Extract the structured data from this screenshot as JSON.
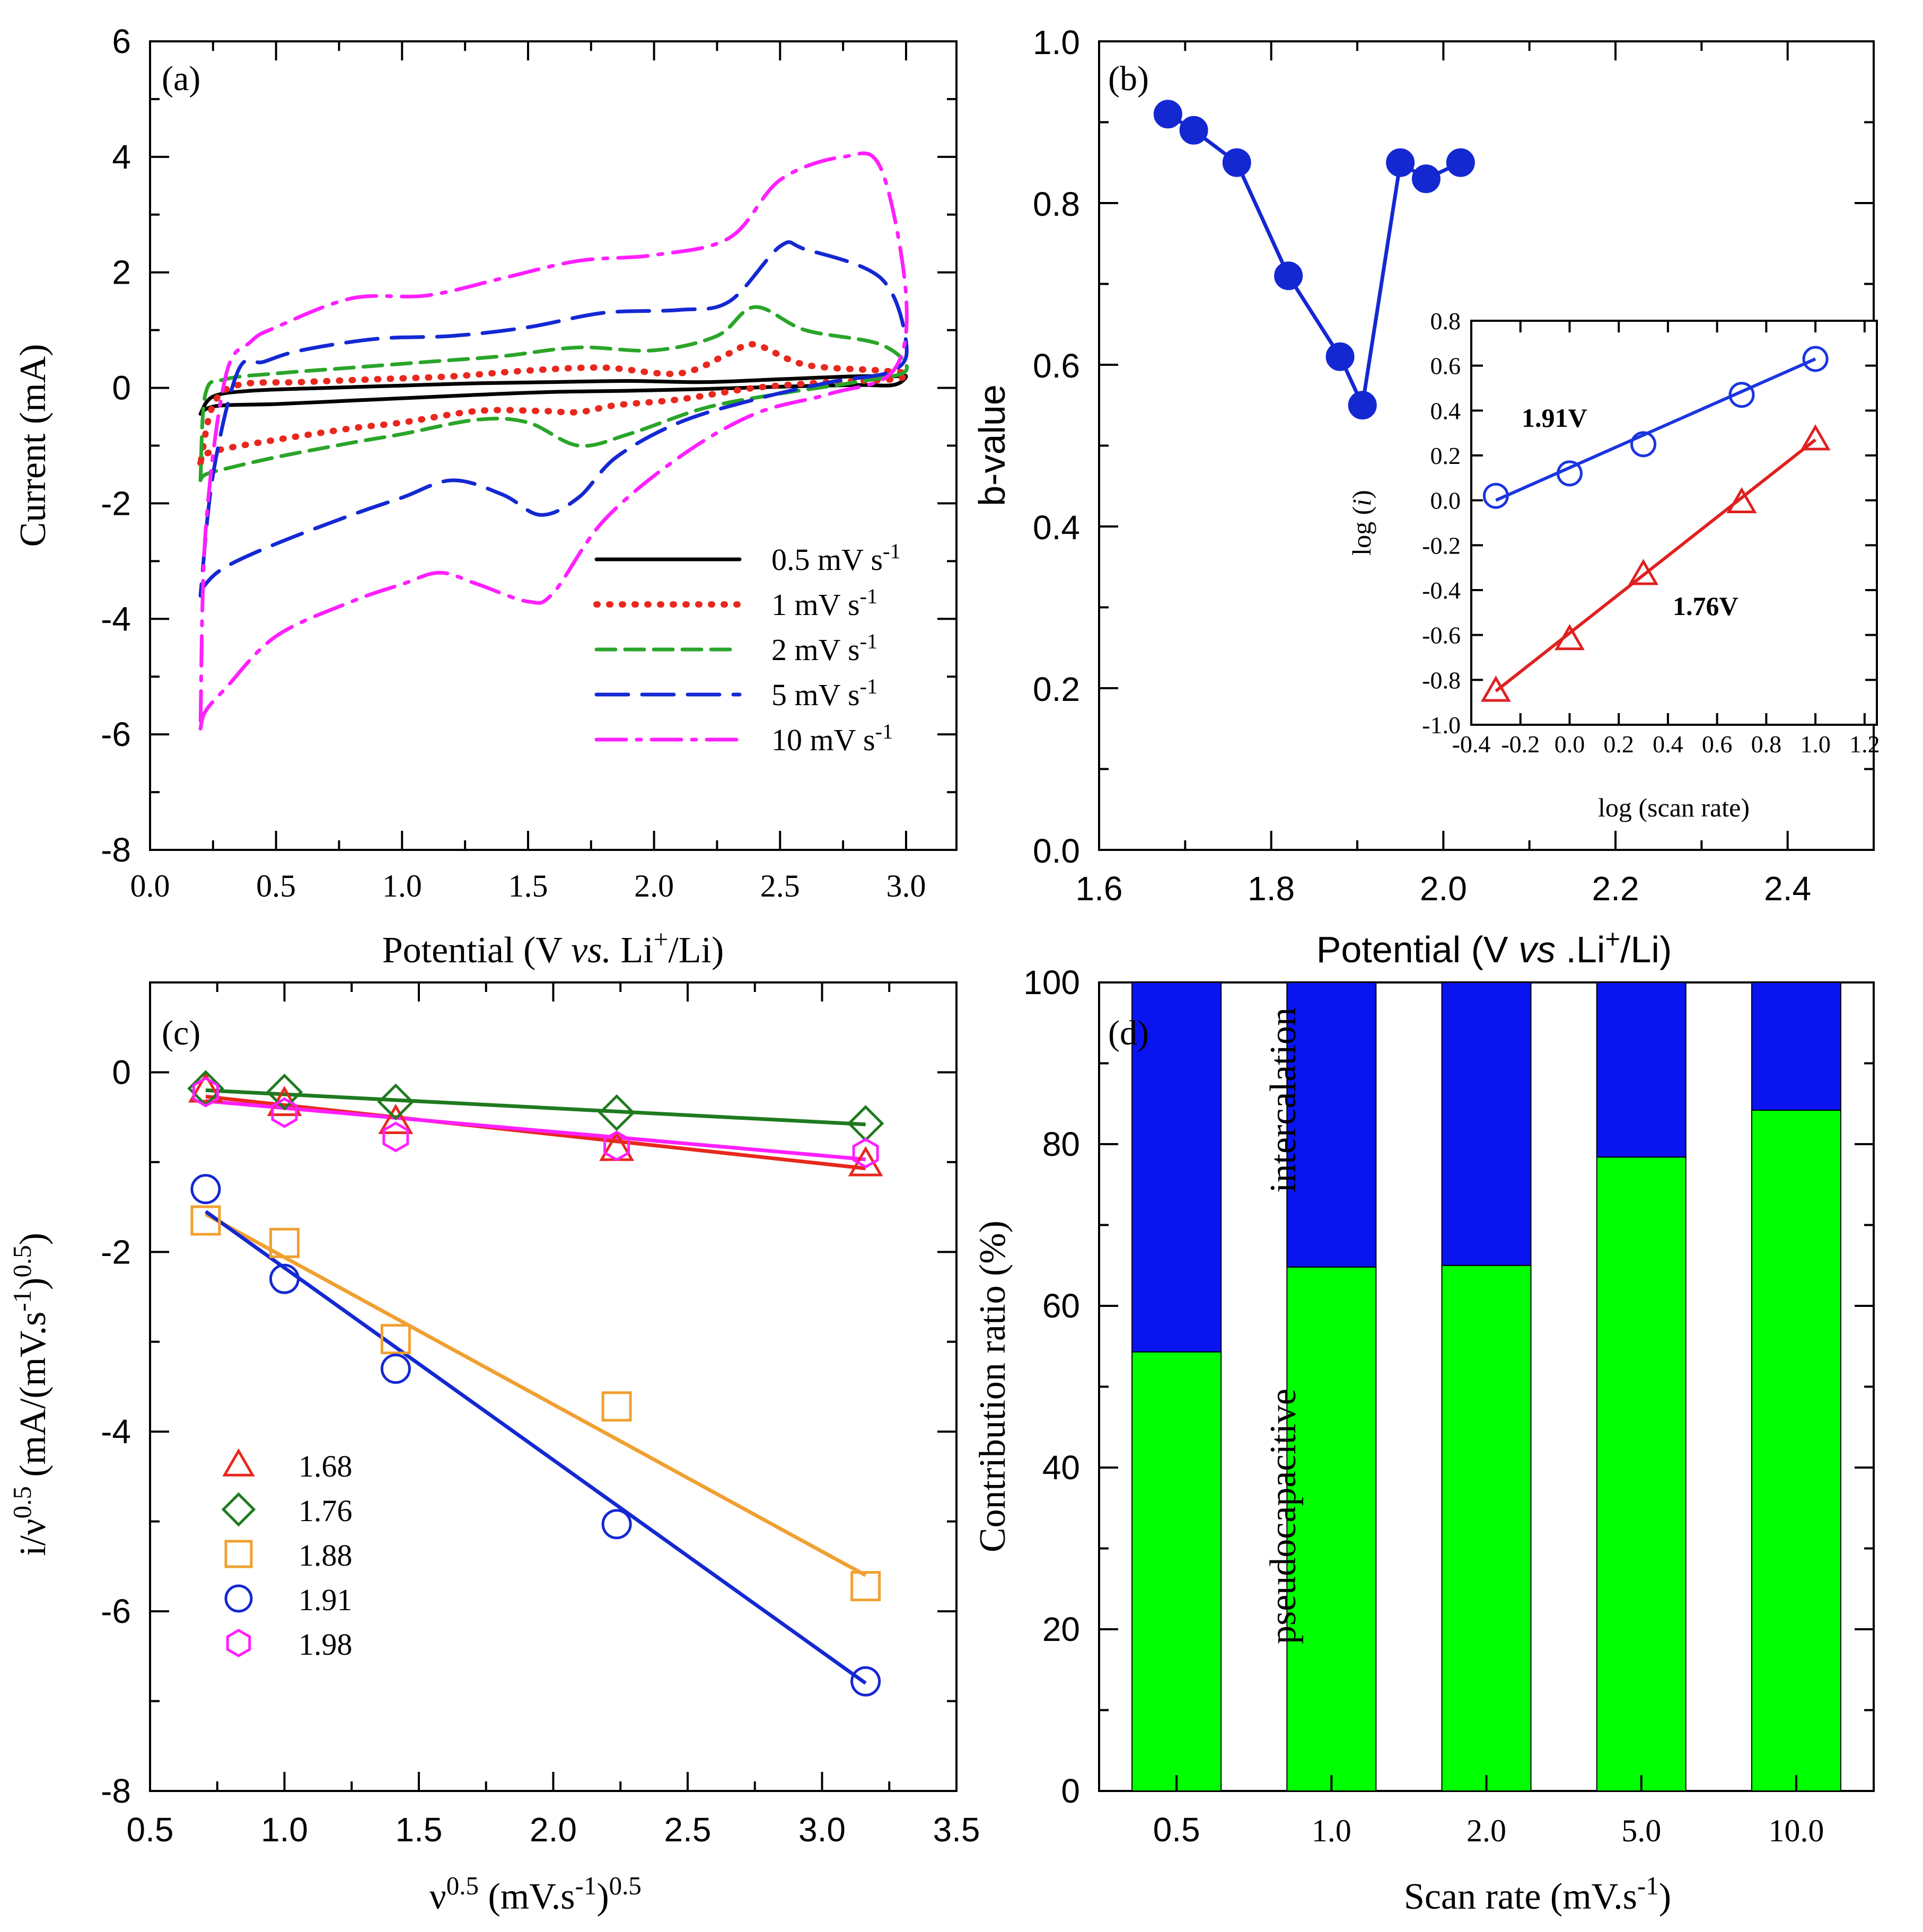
{
  "colors": {
    "black": "#000000",
    "red": "#e8281e",
    "green": "#2aa52a",
    "green_dark": "#1f7a1f",
    "blue": "#1428d2",
    "magenta": "#ff1fff",
    "orange": "#f0a030",
    "pseudo_bar": "#00ff00",
    "intercal_bar": "#0a14f0",
    "inset_blue": "#1a35e0",
    "inset_red": "#e02020"
  },
  "chart_data": [
    {
      "id": "a",
      "type": "line",
      "panel_label": "(a)",
      "xlabel": "Potential (V vs. Li+/Li)",
      "xlabel_parts": [
        "Potential (V ",
        "vs.",
        " Li",
        "+",
        "/Li)"
      ],
      "ylabel": "Current (mA)",
      "xlim": [
        0.0,
        3.2
      ],
      "ylim": [
        -8,
        6
      ],
      "xticks": [
        0.0,
        0.5,
        1.0,
        1.5,
        2.0,
        2.5,
        3.0
      ],
      "xtick_labels": [
        "0.0",
        "0.5",
        "1.0",
        "1.5",
        "2.0",
        "2.5",
        "3.0"
      ],
      "yticks": [
        -8,
        -6,
        -4,
        -2,
        0,
        2,
        4,
        6
      ],
      "ytick_labels": [
        "-8",
        "-6",
        "-4",
        "-2",
        "0",
        "2",
        "4",
        "6"
      ],
      "legend_position": "bottom-right",
      "series": [
        {
          "name": "0.5 mV s-1",
          "label_main": "0.5 mV s",
          "label_sup": "-1",
          "color": "black",
          "dash": "solid",
          "x": [
            0.2,
            0.23,
            0.3,
            0.5,
            0.8,
            1.0,
            1.3,
            1.6,
            1.9,
            2.2,
            2.5,
            2.8,
            2.95,
            3.0,
            2.95,
            2.8,
            2.5,
            2.2,
            1.9,
            1.6,
            1.3,
            1.0,
            0.7,
            0.4,
            0.25,
            0.2
          ],
          "y": [
            -0.45,
            -0.35,
            -0.3,
            -0.28,
            -0.22,
            -0.18,
            -0.12,
            -0.07,
            -0.05,
            -0.02,
            0.02,
            0.05,
            0.05,
            0.2,
            0.2,
            0.2,
            0.15,
            0.1,
            0.12,
            0.1,
            0.08,
            0.04,
            0.0,
            -0.05,
            -0.15,
            -0.45
          ]
        },
        {
          "name": "1 mV s-1",
          "label_main": "1 mV s",
          "label_sup": "-1",
          "color": "red",
          "dash": "dot",
          "x": [
            0.2,
            0.22,
            0.3,
            0.5,
            0.8,
            1.0,
            1.3,
            1.55,
            1.7,
            1.85,
            2.1,
            2.4,
            2.7,
            2.95,
            3.0,
            2.9,
            2.6,
            2.4,
            2.3,
            2.1,
            1.8,
            1.5,
            1.2,
            0.9,
            0.6,
            0.35,
            0.25,
            0.2
          ],
          "y": [
            -1.3,
            -1.15,
            -1.05,
            -0.9,
            -0.7,
            -0.6,
            -0.4,
            -0.4,
            -0.42,
            -0.3,
            -0.2,
            0.0,
            0.1,
            0.15,
            0.25,
            0.3,
            0.4,
            0.75,
            0.6,
            0.25,
            0.35,
            0.3,
            0.2,
            0.15,
            0.1,
            0.05,
            -0.3,
            -1.3
          ]
        },
        {
          "name": "2 mV s-1",
          "label_main": "2 mV s",
          "label_sup": "-1",
          "color": "green",
          "dash": "dash",
          "x": [
            0.2,
            0.22,
            0.3,
            0.5,
            0.8,
            1.0,
            1.3,
            1.5,
            1.7,
            1.9,
            2.2,
            2.5,
            2.8,
            3.0,
            2.9,
            2.6,
            2.4,
            2.25,
            2.0,
            1.7,
            1.4,
            1.1,
            0.8,
            0.5,
            0.3,
            0.22,
            0.2
          ],
          "y": [
            -1.6,
            -1.5,
            -1.4,
            -1.2,
            -0.95,
            -0.8,
            -0.55,
            -0.6,
            -1.0,
            -0.8,
            -0.35,
            -0.1,
            0.1,
            0.3,
            0.75,
            1.0,
            1.4,
            0.9,
            0.65,
            0.7,
            0.55,
            0.45,
            0.35,
            0.25,
            0.15,
            -0.1,
            -1.6
          ]
        },
        {
          "name": "5 mV s-1",
          "label_main": "5 mV s",
          "label_sup": "-1",
          "color": "blue",
          "dash": "longdash",
          "x": [
            0.2,
            0.22,
            0.3,
            0.5,
            0.8,
            1.0,
            1.2,
            1.4,
            1.55,
            1.7,
            1.85,
            2.1,
            2.4,
            2.7,
            2.95,
            3.0,
            2.9,
            2.6,
            2.5,
            2.3,
            2.1,
            1.8,
            1.5,
            1.2,
            0.9,
            0.6,
            0.45,
            0.35,
            0.25,
            0.2
          ],
          "y": [
            -3.6,
            -3.4,
            -3.1,
            -2.7,
            -2.2,
            -1.9,
            -1.6,
            -1.85,
            -2.2,
            -1.9,
            -1.2,
            -0.6,
            -0.2,
            0.1,
            0.3,
            0.8,
            1.9,
            2.4,
            2.45,
            1.5,
            1.35,
            1.3,
            1.05,
            0.9,
            0.85,
            0.65,
            0.45,
            0.3,
            -1.5,
            -3.6
          ]
        },
        {
          "name": "10 mV s-1",
          "label_main": "10 mV s",
          "label_sup": "-1",
          "color": "magenta",
          "dash": "dashdot",
          "x": [
            0.2,
            0.22,
            0.3,
            0.5,
            0.8,
            1.0,
            1.15,
            1.3,
            1.5,
            1.6,
            1.8,
            2.1,
            2.4,
            2.7,
            2.95,
            3.0,
            2.9,
            2.75,
            2.5,
            2.3,
            2.0,
            1.7,
            1.4,
            1.1,
            0.8,
            0.5,
            0.4,
            0.3,
            0.22,
            0.2
          ],
          "y": [
            -5.9,
            -5.6,
            -5.2,
            -4.3,
            -3.7,
            -3.4,
            -3.2,
            -3.4,
            -3.7,
            -3.55,
            -2.3,
            -1.2,
            -0.45,
            -0.1,
            0.3,
            1.6,
            3.8,
            4.0,
            3.6,
            2.6,
            2.3,
            2.2,
            1.9,
            1.6,
            1.55,
            1.05,
            0.8,
            0.2,
            -2.5,
            -5.9
          ]
        }
      ]
    },
    {
      "id": "b",
      "type": "line",
      "panel_label": "(b)",
      "xlabel": "Potential (V vs .Li+/Li)",
      "xlabel_parts": [
        "Potential (V ",
        "vs",
        " .Li",
        "+",
        "/Li)"
      ],
      "ylabel": "b-value",
      "xlim": [
        1.6,
        2.5
      ],
      "ylim": [
        0.0,
        1.0
      ],
      "xticks": [
        1.6,
        1.8,
        2.0,
        2.2,
        2.4
      ],
      "xtick_labels": [
        "1.6",
        "1.8",
        "2.0",
        "2.2",
        "2.4"
      ],
      "yticks": [
        0.0,
        0.2,
        0.4,
        0.6,
        0.8,
        1.0
      ],
      "ytick_labels": [
        "0.0",
        "0.2",
        "0.4",
        "0.6",
        "0.8",
        "1.0"
      ],
      "series": [
        {
          "name": "b-value",
          "color": "blue",
          "marker": "filled-circle",
          "x": [
            1.68,
            1.71,
            1.76,
            1.82,
            1.88,
            1.906,
            1.95,
            1.98,
            2.02
          ],
          "y": [
            0.91,
            0.89,
            0.85,
            0.71,
            0.61,
            0.55,
            0.85,
            0.83,
            0.85
          ]
        }
      ],
      "inset": {
        "type": "scatter",
        "xlabel": "log (scan rate)",
        "ylabel": "log (i)",
        "ylabel_parts": [
          "log (",
          "i",
          ")"
        ],
        "xlim": [
          -0.4,
          1.25
        ],
        "ylim": [
          -1.0,
          0.8
        ],
        "xticks": [
          -0.4,
          -0.2,
          0.0,
          0.2,
          0.4,
          0.6,
          0.8,
          1.0,
          1.2
        ],
        "xtick_labels": [
          "-0.4",
          "-0.2",
          "0.0",
          "0.2",
          "0.4",
          "0.6",
          "0.8",
          "1.0",
          "1.2"
        ],
        "yticks": [
          -1.0,
          -0.8,
          -0.6,
          -0.4,
          -0.2,
          0.0,
          0.2,
          0.4,
          0.6,
          0.8
        ],
        "ytick_labels": [
          "-1.0",
          "-0.8",
          "-0.6",
          "-0.4",
          "-0.2",
          "0.0",
          "0.2",
          "0.4",
          "0.6",
          "0.8"
        ],
        "series": [
          {
            "name": "1.91V",
            "color": "inset_blue",
            "marker": "circle",
            "x": [
              -0.3,
              0.0,
              0.3,
              0.7,
              1.0
            ],
            "y": [
              0.02,
              0.12,
              0.25,
              0.47,
              0.63
            ],
            "fit": [
              [
                -0.3,
                0.0
              ],
              [
                1.0,
                0.63
              ]
            ]
          },
          {
            "name": "1.76V",
            "color": "inset_red",
            "marker": "triangle",
            "x": [
              -0.3,
              0.0,
              0.3,
              0.7,
              1.0
            ],
            "y": [
              -0.85,
              -0.62,
              -0.33,
              -0.01,
              0.27
            ],
            "fit": [
              [
                -0.3,
                -0.85
              ],
              [
                1.0,
                0.27
              ]
            ]
          }
        ]
      }
    },
    {
      "id": "c",
      "type": "scatter",
      "panel_label": "(c)",
      "xlabel": "ν0.5 (mV.s-1)0.5",
      "xlabel_parts": [
        "ν",
        "0.5",
        " (mV.s",
        "-1",
        ")",
        "0.5"
      ],
      "ylabel": "i/ν0.5 (mA/(mV.s-1)0.5)",
      "ylabel_parts": [
        "i/ν",
        "0.5",
        " (mA/(mV.s",
        "-1",
        ")",
        "0.5",
        ")"
      ],
      "xlim": [
        0.5,
        3.5
      ],
      "ylim": [
        -8,
        1
      ],
      "xticks": [
        0.5,
        1.0,
        1.5,
        2.0,
        2.5,
        3.0,
        3.5
      ],
      "xtick_labels": [
        "0.5",
        "1.0",
        "1.5",
        "2.0",
        "2.5",
        "3.0",
        "3.5"
      ],
      "yticks": [
        -8,
        -6,
        -4,
        -2,
        0
      ],
      "ytick_labels": [
        "-8",
        "-6",
        "-4",
        "-2",
        "0"
      ],
      "legend_position": "bottom-left",
      "series": [
        {
          "name": "1.68",
          "color": "red",
          "marker": "triangle",
          "x": [
            0.707,
            1.0,
            1.414,
            2.236,
            3.162
          ],
          "y": [
            -0.2,
            -0.35,
            -0.55,
            -0.85,
            -1.02
          ],
          "fit": [
            [
              0.707,
              -0.27
            ],
            [
              3.162,
              -1.07
            ]
          ]
        },
        {
          "name": "1.76",
          "color": "green_dark",
          "marker": "diamond",
          "x": [
            0.707,
            1.0,
            1.414,
            2.236,
            3.162
          ],
          "y": [
            -0.18,
            -0.22,
            -0.33,
            -0.45,
            -0.57
          ],
          "fit": [
            [
              0.707,
              -0.2
            ],
            [
              3.162,
              -0.58
            ]
          ]
        },
        {
          "name": "1.88",
          "color": "orange",
          "marker": "square",
          "x": [
            0.707,
            1.0,
            1.414,
            2.236,
            3.162
          ],
          "y": [
            -1.65,
            -1.9,
            -2.97,
            -3.72,
            -5.72
          ],
          "fit": [
            [
              0.707,
              -1.58
            ],
            [
              3.162,
              -5.6
            ]
          ]
        },
        {
          "name": "1.91",
          "color": "blue",
          "marker": "circle",
          "x": [
            0.707,
            1.0,
            1.414,
            2.236,
            3.162
          ],
          "y": [
            -1.3,
            -2.3,
            -3.3,
            -5.03,
            -6.78
          ],
          "fit": [
            [
              0.707,
              -1.55
            ],
            [
              3.162,
              -6.8
            ]
          ]
        },
        {
          "name": "1.98",
          "color": "magenta",
          "marker": "hexagon",
          "x": [
            0.707,
            1.0,
            1.414,
            2.236,
            3.162
          ],
          "y": [
            -0.22,
            -0.45,
            -0.72,
            -0.82,
            -0.9
          ],
          "fit": [
            [
              0.707,
              -0.32
            ],
            [
              3.162,
              -0.97
            ]
          ]
        }
      ]
    },
    {
      "id": "d",
      "type": "bar",
      "stacked": true,
      "panel_label": "(d)",
      "xlabel": "Scan rate (mV.s-1)",
      "xlabel_parts": [
        "Scan rate (mV.s",
        "-1",
        ")"
      ],
      "ylabel": "Contribution ratio (%)",
      "ylim": [
        0,
        100
      ],
      "yticks": [
        0,
        20,
        40,
        60,
        80,
        100
      ],
      "ytick_labels": [
        "0",
        "20",
        "40",
        "60",
        "80",
        "100"
      ],
      "categories": [
        "0.5",
        "1.0",
        "2.0",
        "5.0",
        "10.0"
      ],
      "series": [
        {
          "name": "pseudocapacitive",
          "color": "pseudo_bar",
          "values": [
            54.3,
            64.8,
            65.0,
            78.4,
            84.2
          ]
        },
        {
          "name": "intercalation",
          "color": "intercal_bar",
          "values": [
            45.7,
            35.2,
            35.0,
            21.6,
            15.8
          ]
        }
      ]
    }
  ]
}
